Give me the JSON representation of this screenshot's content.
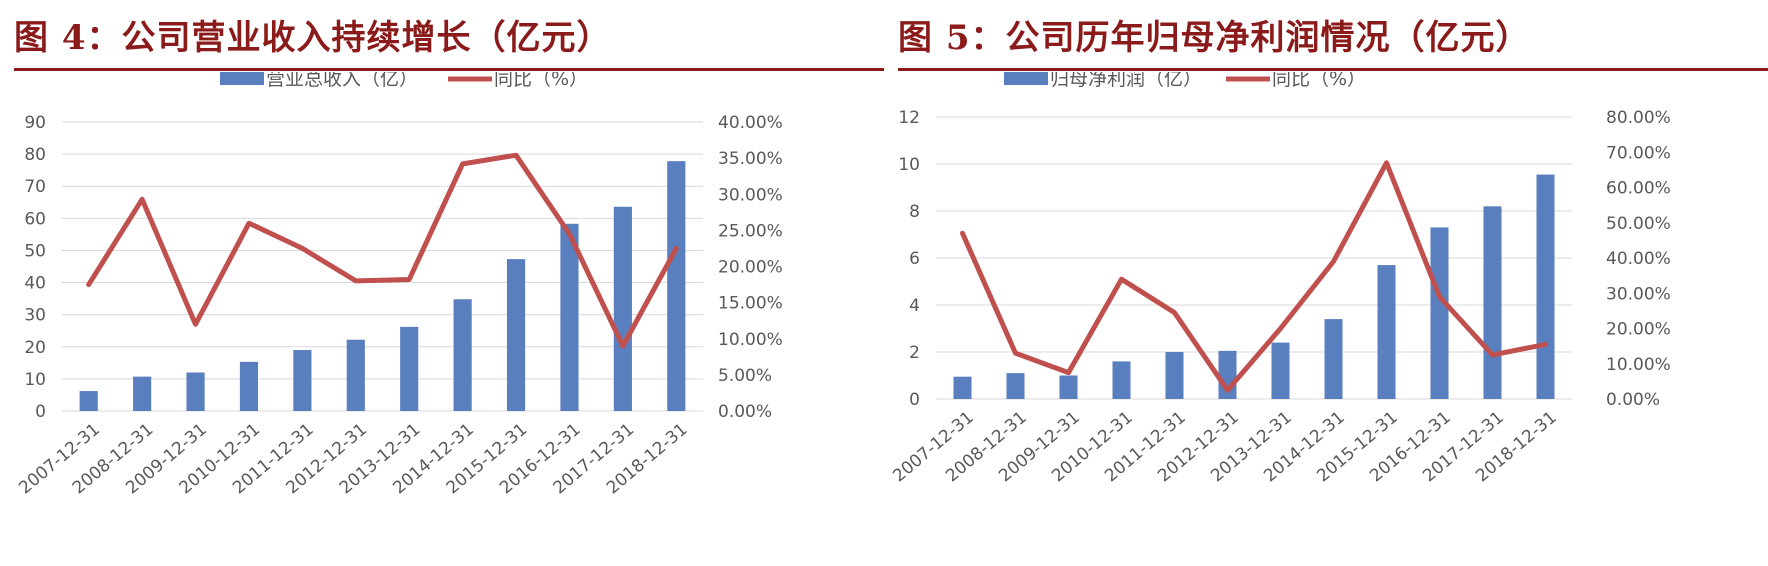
{
  "chart_data": [
    {
      "type": "bar",
      "title": "图 4：公司营业收入持续增长（亿元）",
      "categories": [
        "2007-12-31",
        "2008-12-31",
        "2009-12-31",
        "2010-12-31",
        "2011-12-31",
        "2012-12-31",
        "2013-12-31",
        "2014-12-31",
        "2015-12-31",
        "2016-12-31",
        "2017-12-31",
        "2018-12-31"
      ],
      "series": [
        {
          "name": "营业总收入（亿）",
          "type": "bar",
          "axis": "left",
          "values": [
            6.2,
            10.7,
            12.0,
            15.3,
            19.0,
            22.2,
            26.2,
            34.8,
            47.3,
            58.3,
            63.6,
            77.8
          ]
        },
        {
          "name": "同比（%）",
          "type": "line",
          "axis": "right",
          "values": [
            17.5,
            29.3,
            12.0,
            26.0,
            22.5,
            18.0,
            18.2,
            34.2,
            35.4,
            24.5,
            9.0,
            22.5
          ]
        }
      ],
      "ylim": [
        0,
        90
      ],
      "y_ticks": [
        "0",
        "10",
        "20",
        "30",
        "40",
        "50",
        "60",
        "70",
        "80",
        "90"
      ],
      "y2lim": [
        0,
        40
      ],
      "y2_ticks": [
        "0.00%",
        "5.00%",
        "10.00%",
        "15.00%",
        "20.00%",
        "25.00%",
        "30.00%",
        "35.00%",
        "40.00%"
      ],
      "grid": true,
      "legend": "top-center",
      "colors": {
        "bar": "#5a7fbf",
        "line": "#c0504d",
        "title": "#8b1a1a"
      }
    },
    {
      "type": "bar",
      "title": "图 5：公司历年归母净利润情况（亿元）",
      "categories": [
        "2007-12-31",
        "2008-12-31",
        "2009-12-31",
        "2010-12-31",
        "2011-12-31",
        "2012-12-31",
        "2013-12-31",
        "2014-12-31",
        "2015-12-31",
        "2016-12-31",
        "2017-12-31",
        "2018-12-31"
      ],
      "series": [
        {
          "name": "归母净利润（亿）",
          "type": "bar",
          "axis": "left",
          "values": [
            0.95,
            1.1,
            1.0,
            1.6,
            2.0,
            2.05,
            2.4,
            3.4,
            5.7,
            7.3,
            8.2,
            9.55
          ]
        },
        {
          "name": "同比（%）",
          "type": "line",
          "axis": "right",
          "values": [
            47.0,
            13.0,
            7.5,
            34.0,
            24.5,
            2.5,
            20.0,
            39.0,
            67.0,
            29.0,
            12.5,
            15.5
          ]
        }
      ],
      "ylim": [
        0,
        12
      ],
      "y_ticks": [
        "0",
        "2",
        "4",
        "6",
        "8",
        "10",
        "12"
      ],
      "y2lim": [
        0,
        80
      ],
      "y2_ticks": [
        "0.00%",
        "10.00%",
        "20.00%",
        "30.00%",
        "40.00%",
        "50.00%",
        "60.00%",
        "70.00%",
        "80.00%"
      ],
      "grid": true,
      "legend": "top-center",
      "colors": {
        "bar": "#5a7fbf",
        "line": "#c0504d",
        "title": "#8b1a1a"
      }
    }
  ]
}
